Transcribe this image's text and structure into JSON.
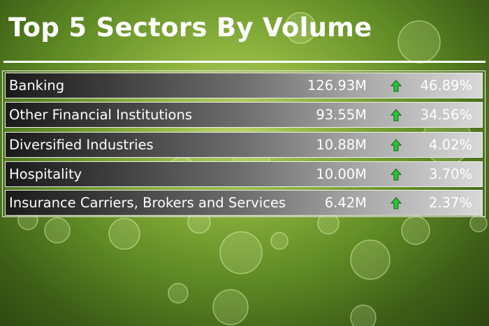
{
  "title": "Top 5 Sectors By Volume",
  "table": {
    "rows": [
      [
        "Banking",
        "126.93M",
        "46.89%"
      ],
      [
        "Other Financial Institutions",
        "93.55M",
        "34.56%"
      ],
      [
        "Diversified Industries",
        "10.88M",
        "4.02%"
      ],
      [
        "Hospitality",
        "10.00M",
        "3.70%"
      ],
      [
        "Insurance Carriers, Brokers and Services",
        "6.42M",
        "2.37%"
      ]
    ]
  }
}
